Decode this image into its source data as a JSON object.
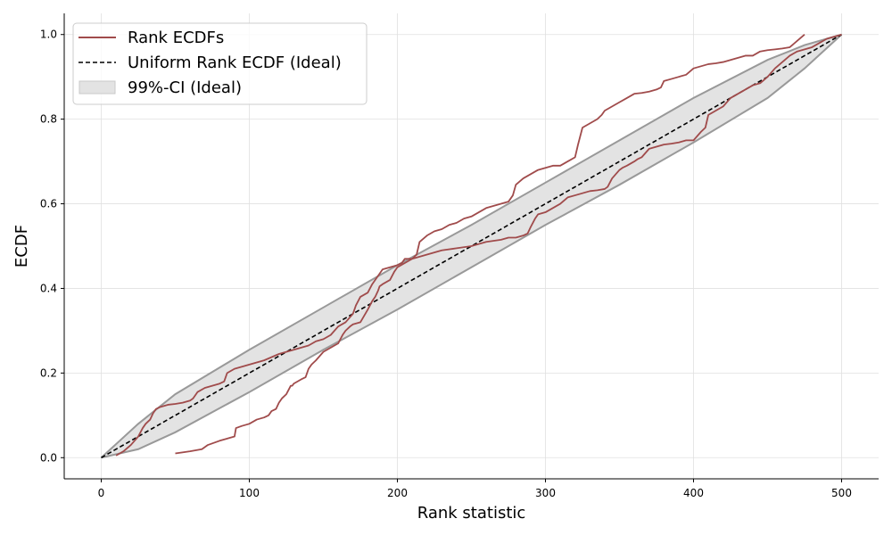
{
  "chart_data": {
    "type": "line",
    "title": "",
    "xlabel": "Rank statistic",
    "ylabel": "ECDF",
    "xlim": [
      -25,
      525
    ],
    "ylim": [
      -0.05,
      1.05
    ],
    "xticks": [
      0,
      100,
      200,
      300,
      400,
      500
    ],
    "yticks": [
      0.0,
      0.2,
      0.4,
      0.6,
      0.8,
      1.0
    ],
    "grid": true,
    "legend_position": "top-left",
    "colors": {
      "rank": "#a04b4b",
      "uniform": "#000000",
      "ci_fill": "#e3e3e3",
      "ci_edge": "#999999",
      "grid": "#e0e0e0"
    },
    "legend": [
      {
        "label": "Rank ECDFs",
        "style": "line"
      },
      {
        "label": "Uniform Rank ECDF (Ideal)",
        "style": "dashed"
      },
      {
        "label": "99%-CI (Ideal)",
        "style": "patch"
      }
    ],
    "uniform_line": {
      "x": [
        0,
        500
      ],
      "y": [
        0.0,
        1.0
      ]
    },
    "ci_band": {
      "x": [
        0,
        25,
        50,
        100,
        150,
        200,
        250,
        300,
        350,
        400,
        450,
        475,
        500
      ],
      "lower": [
        0.0,
        0.02,
        0.06,
        0.155,
        0.255,
        0.35,
        0.45,
        0.55,
        0.645,
        0.745,
        0.85,
        0.92,
        1.0
      ],
      "upper": [
        0.0,
        0.08,
        0.15,
        0.255,
        0.355,
        0.455,
        0.55,
        0.65,
        0.75,
        0.85,
        0.94,
        0.975,
        1.0
      ]
    },
    "series": [
      {
        "x": [
          10,
          15,
          20,
          25,
          28,
          30,
          33,
          35,
          37,
          40,
          45,
          50,
          55,
          60,
          62,
          65,
          70,
          75,
          80,
          83,
          85,
          90,
          100,
          110,
          120,
          125,
          130,
          140,
          145,
          150,
          155,
          160,
          165,
          170,
          172,
          175,
          180,
          183,
          185,
          190,
          195,
          200,
          203,
          205,
          210,
          213,
          215,
          220,
          225,
          230,
          235,
          240,
          245,
          250,
          255,
          260,
          265,
          270,
          275,
          276,
          278,
          280,
          285,
          290,
          295,
          300,
          305,
          310,
          315,
          320,
          322,
          325,
          330,
          335,
          338,
          340,
          345,
          350,
          355,
          360,
          365,
          370,
          375,
          378,
          380,
          385,
          390,
          395,
          400,
          405,
          410,
          415,
          420,
          425,
          430,
          435,
          440,
          445,
          450,
          455,
          460,
          465,
          470,
          475
        ],
        "y": [
          0.005,
          0.015,
          0.03,
          0.05,
          0.07,
          0.08,
          0.09,
          0.105,
          0.115,
          0.12,
          0.125,
          0.127,
          0.13,
          0.135,
          0.14,
          0.155,
          0.165,
          0.17,
          0.175,
          0.18,
          0.2,
          0.21,
          0.22,
          0.23,
          0.245,
          0.25,
          0.255,
          0.265,
          0.275,
          0.28,
          0.29,
          0.31,
          0.32,
          0.34,
          0.36,
          0.38,
          0.39,
          0.41,
          0.42,
          0.445,
          0.45,
          0.455,
          0.46,
          0.47,
          0.47,
          0.48,
          0.51,
          0.525,
          0.535,
          0.54,
          0.55,
          0.555,
          0.565,
          0.57,
          0.58,
          0.59,
          0.595,
          0.6,
          0.605,
          0.61,
          0.62,
          0.645,
          0.66,
          0.67,
          0.68,
          0.685,
          0.69,
          0.69,
          0.7,
          0.71,
          0.74,
          0.78,
          0.79,
          0.8,
          0.81,
          0.82,
          0.83,
          0.84,
          0.85,
          0.86,
          0.862,
          0.865,
          0.87,
          0.875,
          0.89,
          0.895,
          0.9,
          0.905,
          0.92,
          0.925,
          0.93,
          0.932,
          0.935,
          0.94,
          0.945,
          0.95,
          0.95,
          0.96,
          0.963,
          0.965,
          0.967,
          0.97,
          0.985,
          1.0
        ]
      },
      {
        "x": [
          50,
          60,
          68,
          72,
          80,
          90,
          91,
          95,
          100,
          105,
          110,
          113,
          115,
          118,
          120,
          122,
          125,
          128,
          129,
          130,
          135,
          138,
          140,
          142,
          145,
          150,
          155,
          160,
          163,
          165,
          168,
          170,
          175,
          180,
          183,
          185,
          187,
          188,
          190,
          195,
          198,
          200,
          205,
          210,
          215,
          220,
          225,
          230,
          240,
          250,
          260,
          270,
          275,
          280,
          285,
          288,
          290,
          293,
          295,
          300,
          305,
          310,
          315,
          320,
          325,
          330,
          335,
          340,
          342,
          345,
          350,
          352,
          355,
          360,
          362,
          365,
          370,
          375,
          380,
          385,
          390,
          395,
          400,
          405,
          408,
          410,
          415,
          420,
          425,
          430,
          440,
          445,
          450,
          455,
          460,
          465,
          470,
          480,
          485,
          490,
          495,
          500
        ],
        "y": [
          0.01,
          0.015,
          0.02,
          0.03,
          0.04,
          0.05,
          0.07,
          0.075,
          0.08,
          0.09,
          0.095,
          0.1,
          0.11,
          0.115,
          0.13,
          0.14,
          0.15,
          0.17,
          0.17,
          0.175,
          0.185,
          0.19,
          0.21,
          0.22,
          0.23,
          0.25,
          0.26,
          0.27,
          0.29,
          0.3,
          0.31,
          0.315,
          0.32,
          0.35,
          0.37,
          0.38,
          0.395,
          0.405,
          0.41,
          0.42,
          0.44,
          0.45,
          0.46,
          0.47,
          0.475,
          0.48,
          0.485,
          0.49,
          0.495,
          0.5,
          0.51,
          0.515,
          0.52,
          0.52,
          0.525,
          0.53,
          0.545,
          0.565,
          0.575,
          0.58,
          0.59,
          0.6,
          0.615,
          0.62,
          0.625,
          0.63,
          0.632,
          0.635,
          0.64,
          0.66,
          0.68,
          0.685,
          0.69,
          0.7,
          0.705,
          0.71,
          0.73,
          0.735,
          0.74,
          0.742,
          0.745,
          0.75,
          0.75,
          0.77,
          0.78,
          0.81,
          0.82,
          0.83,
          0.85,
          0.86,
          0.88,
          0.885,
          0.9,
          0.92,
          0.935,
          0.95,
          0.96,
          0.97,
          0.98,
          0.99,
          0.995,
          1.0
        ]
      }
    ]
  }
}
